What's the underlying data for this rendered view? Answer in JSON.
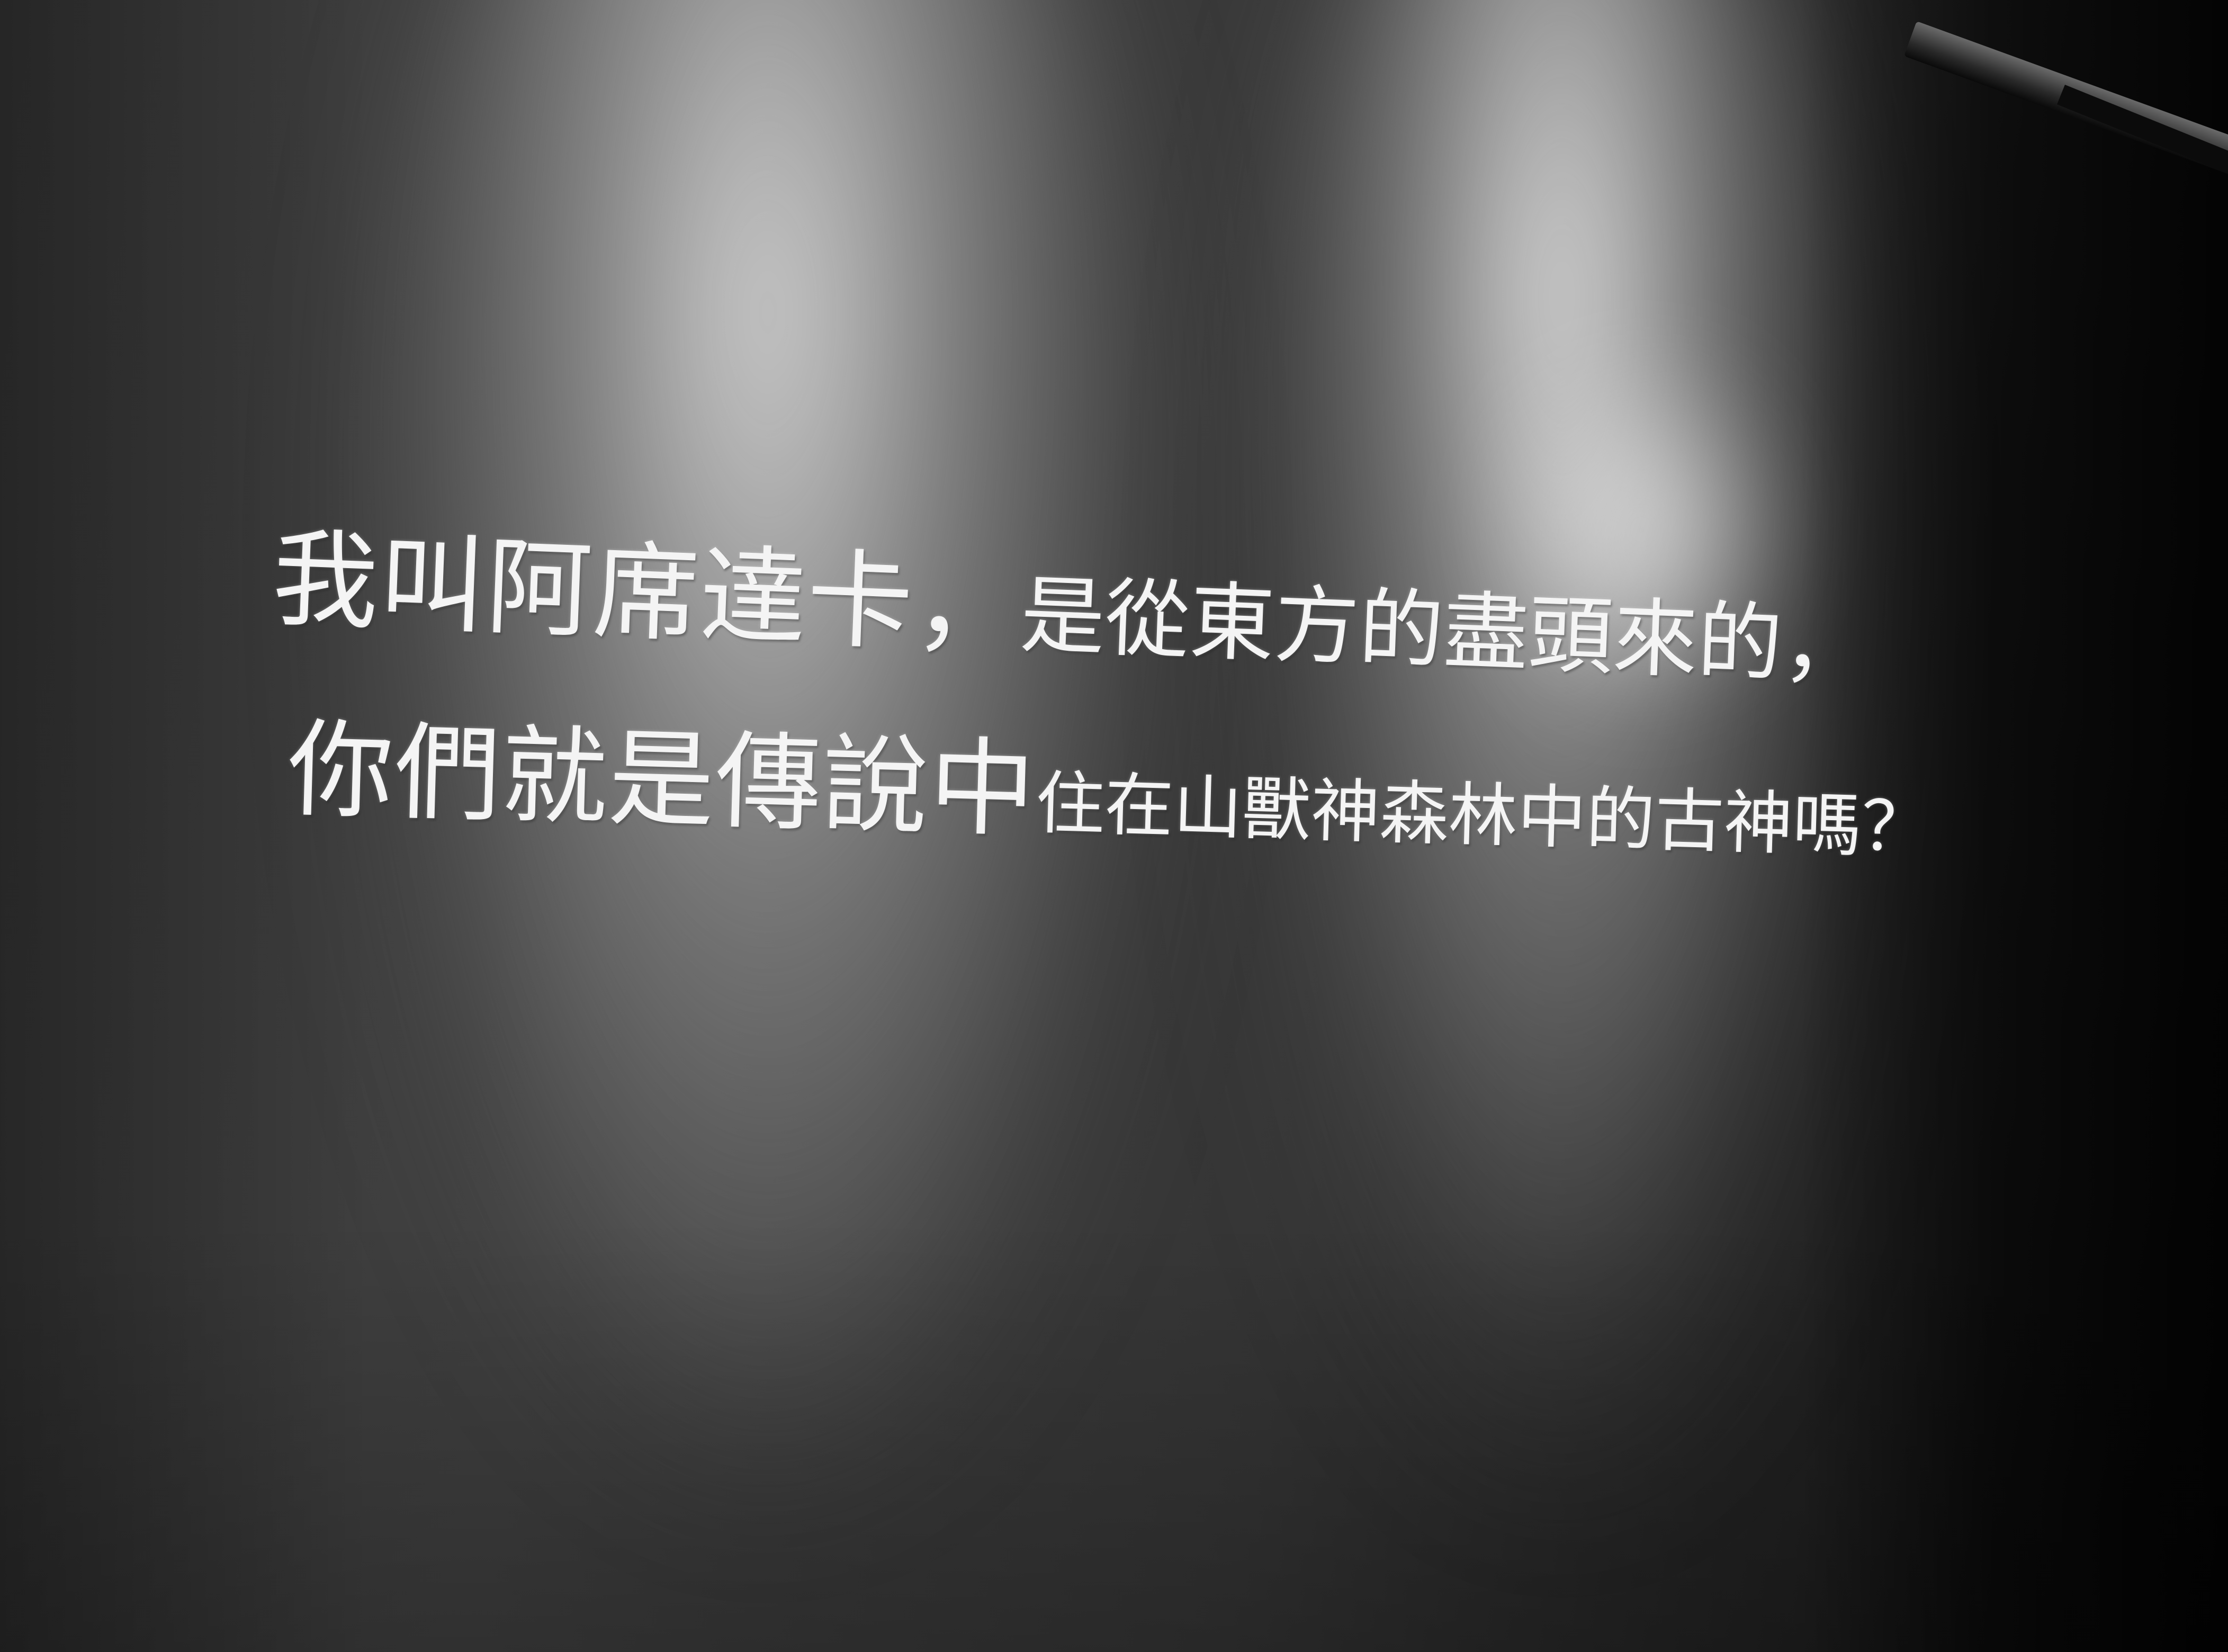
{
  "caption": {
    "line1": {
      "part_a": "我叫阿席達卡，",
      "part_b": "是從東方的盡頭來的，"
    },
    "line2": {
      "part_a": "你們就是傳說中",
      "part_b": "住在山獸神森林中的古神嗎？"
    }
  },
  "colors": {
    "text": "#f4f4f4",
    "wall": "#2a2a2a"
  }
}
